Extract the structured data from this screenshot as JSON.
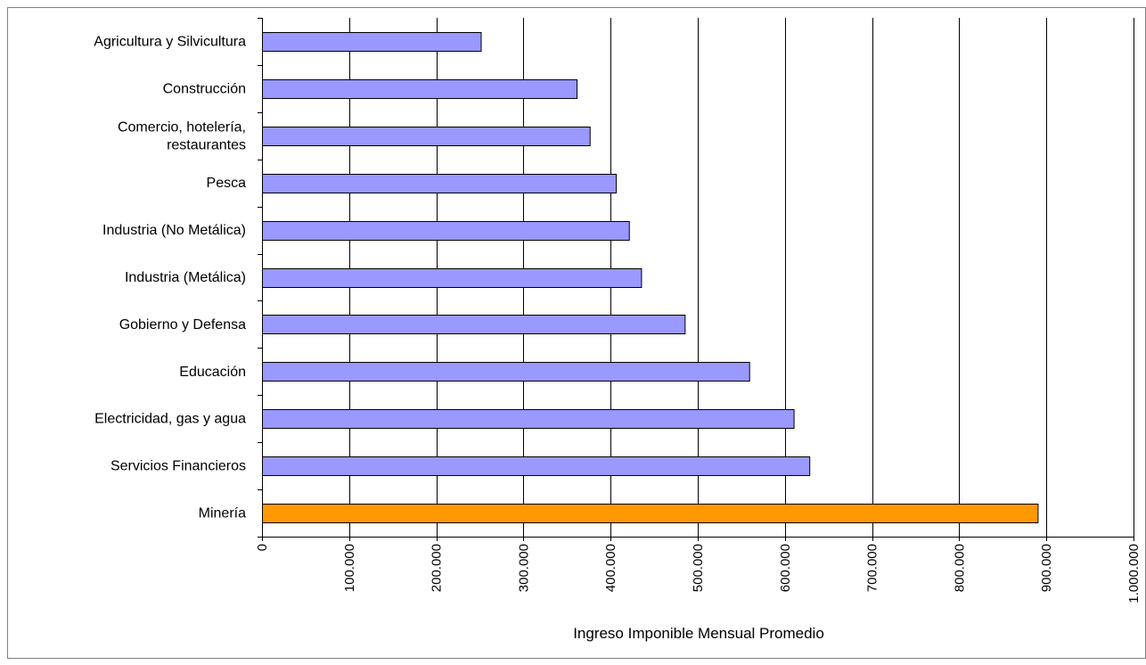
{
  "chart_data": {
    "type": "bar",
    "orientation": "horizontal",
    "title": "",
    "xlabel": "Ingreso Imponible Mensual Promedio",
    "ylabel": "",
    "xlim": [
      0,
      1000000
    ],
    "x_ticks": [
      0,
      100000,
      200000,
      300000,
      400000,
      500000,
      600000,
      700000,
      800000,
      900000,
      1000000
    ],
    "x_tick_labels": [
      "0",
      "100.000",
      "200.000",
      "300.000",
      "400.000",
      "500.000",
      "600.000",
      "700.000",
      "800.000",
      "900.000",
      "1.000.000"
    ],
    "grid": "vertical major gridlines",
    "legend": "none",
    "categories": [
      [
        "Agricultura y Silvicultura"
      ],
      [
        "Construcción"
      ],
      [
        "Comercio, hotelería,",
        "restaurantes"
      ],
      [
        "Pesca"
      ],
      [
        "Industria (No Metálica)"
      ],
      [
        "Industria (Metálica)"
      ],
      [
        "Gobierno y Defensa"
      ],
      [
        "Educación"
      ],
      [
        "Electricidad, gas y agua"
      ],
      [
        "Servicios Financieros"
      ],
      [
        "Minería"
      ]
    ],
    "values": [
      251000,
      361000,
      376000,
      406000,
      421000,
      435000,
      485000,
      559000,
      610000,
      628000,
      890000
    ],
    "colors": [
      "#9999ff",
      "#9999ff",
      "#9999ff",
      "#9999ff",
      "#9999ff",
      "#9999ff",
      "#9999ff",
      "#9999ff",
      "#9999ff",
      "#9999ff",
      "#ff9900"
    ],
    "default_bar_color": "#9999ff",
    "highlight_bar_color": "#ff9900"
  }
}
